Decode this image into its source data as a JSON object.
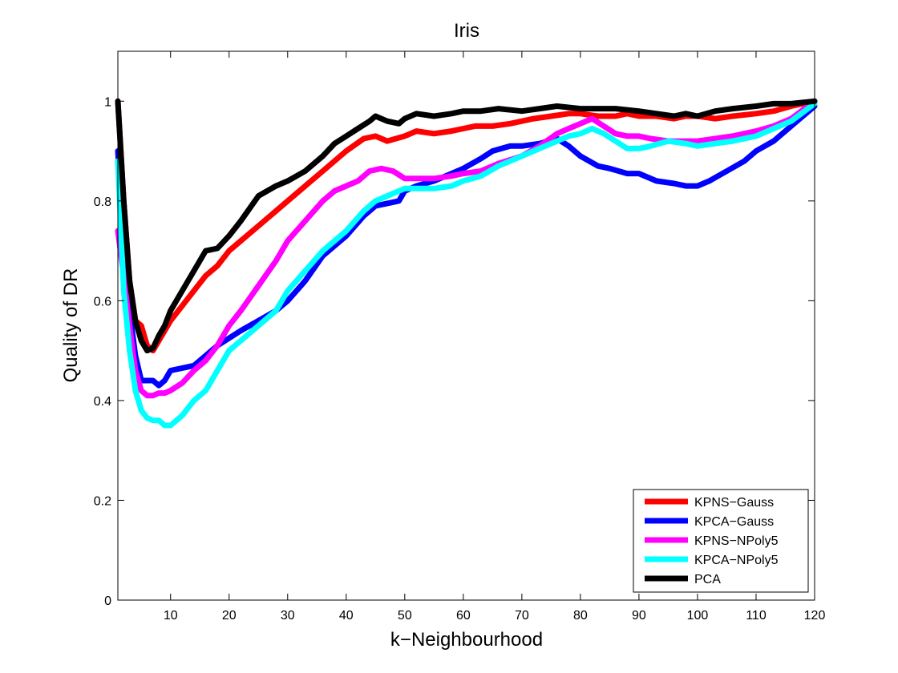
{
  "chart_data": {
    "type": "line",
    "title": "Iris",
    "xlabel": "k−Neighbourhood",
    "ylabel": "Quality of DR",
    "xlim": [
      1,
      120
    ],
    "ylim": [
      0,
      1.1
    ],
    "xticks": [
      10,
      20,
      30,
      40,
      50,
      60,
      70,
      80,
      90,
      100,
      110,
      120
    ],
    "yticks": [
      0,
      0.2,
      0.4,
      0.6,
      0.8,
      1
    ],
    "xtick_labels": [
      "10",
      "20",
      "30",
      "40",
      "50",
      "60",
      "70",
      "80",
      "90",
      "100",
      "110",
      "120"
    ],
    "ytick_labels": [
      "0",
      "0.2",
      "0.4",
      "0.6",
      "0.8",
      "1"
    ],
    "grid": false,
    "legend_position": "bottom-right",
    "series": [
      {
        "name": "KPNS−Gauss",
        "color": "#ff0000",
        "x": [
          1,
          2,
          3,
          4,
          5,
          6,
          7,
          8,
          9,
          10,
          12,
          14,
          16,
          18,
          20,
          22,
          25,
          28,
          30,
          33,
          36,
          40,
          43,
          45,
          47,
          50,
          52,
          55,
          58,
          60,
          62,
          65,
          68,
          70,
          72,
          75,
          78,
          80,
          83,
          86,
          88,
          90,
          93,
          96,
          98,
          100,
          103,
          106,
          110,
          113,
          116,
          120
        ],
        "y": [
          1.0,
          0.8,
          0.64,
          0.56,
          0.55,
          0.51,
          0.5,
          0.52,
          0.54,
          0.56,
          0.59,
          0.62,
          0.65,
          0.67,
          0.7,
          0.72,
          0.75,
          0.78,
          0.8,
          0.83,
          0.86,
          0.9,
          0.925,
          0.93,
          0.92,
          0.93,
          0.94,
          0.935,
          0.94,
          0.945,
          0.95,
          0.95,
          0.955,
          0.96,
          0.965,
          0.97,
          0.975,
          0.975,
          0.97,
          0.97,
          0.975,
          0.97,
          0.97,
          0.965,
          0.97,
          0.97,
          0.965,
          0.97,
          0.975,
          0.98,
          0.99,
          1.0
        ]
      },
      {
        "name": "KPCA−Gauss",
        "color": "#0000ff",
        "x": [
          1,
          2,
          3,
          4,
          5,
          6,
          7,
          8,
          9,
          10,
          12,
          14,
          16,
          18,
          20,
          22,
          25,
          28,
          30,
          33,
          36,
          40,
          43,
          45,
          47,
          49,
          50,
          52,
          55,
          58,
          60,
          63,
          65,
          68,
          70,
          73,
          76,
          78,
          80,
          83,
          85,
          88,
          90,
          93,
          96,
          98,
          100,
          102,
          105,
          108,
          110,
          113,
          116,
          120
        ],
        "y": [
          0.9,
          0.7,
          0.58,
          0.49,
          0.44,
          0.44,
          0.44,
          0.43,
          0.44,
          0.46,
          0.465,
          0.47,
          0.49,
          0.51,
          0.525,
          0.54,
          0.56,
          0.58,
          0.6,
          0.64,
          0.69,
          0.73,
          0.77,
          0.79,
          0.795,
          0.8,
          0.82,
          0.83,
          0.84,
          0.855,
          0.865,
          0.885,
          0.9,
          0.91,
          0.91,
          0.915,
          0.925,
          0.91,
          0.89,
          0.87,
          0.865,
          0.855,
          0.855,
          0.84,
          0.835,
          0.83,
          0.83,
          0.84,
          0.86,
          0.88,
          0.9,
          0.92,
          0.95,
          0.99
        ]
      },
      {
        "name": "KPNS−NPoly5",
        "color": "#ff00ff",
        "x": [
          1,
          2,
          3,
          4,
          5,
          6,
          7,
          8,
          9,
          10,
          12,
          14,
          16,
          18,
          20,
          22,
          25,
          28,
          30,
          33,
          36,
          38,
          40,
          42,
          44,
          46,
          48,
          50,
          52,
          55,
          58,
          60,
          63,
          66,
          70,
          73,
          76,
          78,
          80,
          82,
          84,
          86,
          88,
          90,
          92,
          95,
          98,
          100,
          103,
          106,
          110,
          113,
          116,
          120
        ],
        "y": [
          0.74,
          0.65,
          0.55,
          0.46,
          0.42,
          0.41,
          0.41,
          0.415,
          0.415,
          0.42,
          0.435,
          0.46,
          0.48,
          0.51,
          0.55,
          0.58,
          0.63,
          0.68,
          0.72,
          0.76,
          0.8,
          0.82,
          0.83,
          0.84,
          0.86,
          0.865,
          0.86,
          0.845,
          0.845,
          0.845,
          0.85,
          0.855,
          0.86,
          0.875,
          0.89,
          0.91,
          0.935,
          0.945,
          0.955,
          0.965,
          0.95,
          0.935,
          0.93,
          0.93,
          0.925,
          0.92,
          0.92,
          0.92,
          0.925,
          0.93,
          0.94,
          0.95,
          0.965,
          1.0
        ]
      },
      {
        "name": "KPCA−NPoly5",
        "color": "#00ffff",
        "x": [
          1,
          2,
          3,
          4,
          5,
          6,
          7,
          8,
          9,
          10,
          12,
          14,
          16,
          18,
          20,
          22,
          25,
          28,
          30,
          33,
          36,
          40,
          43,
          45,
          47,
          50,
          52,
          55,
          58,
          60,
          63,
          66,
          70,
          73,
          76,
          78,
          80,
          82,
          84,
          86,
          88,
          90,
          92,
          95,
          98,
          100,
          103,
          106,
          110,
          113,
          116,
          120
        ],
        "y": [
          0.88,
          0.62,
          0.5,
          0.42,
          0.38,
          0.365,
          0.36,
          0.36,
          0.35,
          0.35,
          0.37,
          0.4,
          0.42,
          0.46,
          0.5,
          0.52,
          0.55,
          0.58,
          0.62,
          0.66,
          0.7,
          0.74,
          0.78,
          0.8,
          0.81,
          0.825,
          0.825,
          0.825,
          0.83,
          0.84,
          0.85,
          0.87,
          0.89,
          0.905,
          0.92,
          0.93,
          0.935,
          0.945,
          0.935,
          0.92,
          0.905,
          0.905,
          0.91,
          0.92,
          0.915,
          0.91,
          0.915,
          0.92,
          0.93,
          0.945,
          0.96,
          0.995
        ]
      },
      {
        "name": "PCA",
        "color": "#000000",
        "x": [
          1,
          2,
          3,
          4,
          5,
          6,
          7,
          8,
          9,
          10,
          12,
          14,
          16,
          18,
          20,
          22,
          25,
          28,
          30,
          33,
          36,
          38,
          40,
          42,
          44,
          45,
          47,
          49,
          50,
          52,
          55,
          58,
          60,
          63,
          66,
          70,
          73,
          76,
          80,
          83,
          86,
          90,
          93,
          96,
          98,
          100,
          103,
          106,
          110,
          113,
          116,
          120
        ],
        "y": [
          1.0,
          0.8,
          0.64,
          0.56,
          0.52,
          0.5,
          0.505,
          0.53,
          0.55,
          0.58,
          0.62,
          0.66,
          0.7,
          0.705,
          0.73,
          0.76,
          0.81,
          0.83,
          0.84,
          0.86,
          0.89,
          0.915,
          0.93,
          0.945,
          0.96,
          0.97,
          0.96,
          0.955,
          0.965,
          0.975,
          0.97,
          0.975,
          0.98,
          0.98,
          0.985,
          0.98,
          0.985,
          0.99,
          0.985,
          0.985,
          0.985,
          0.98,
          0.975,
          0.97,
          0.975,
          0.97,
          0.98,
          0.985,
          0.99,
          0.995,
          0.995,
          1.0
        ]
      }
    ]
  }
}
